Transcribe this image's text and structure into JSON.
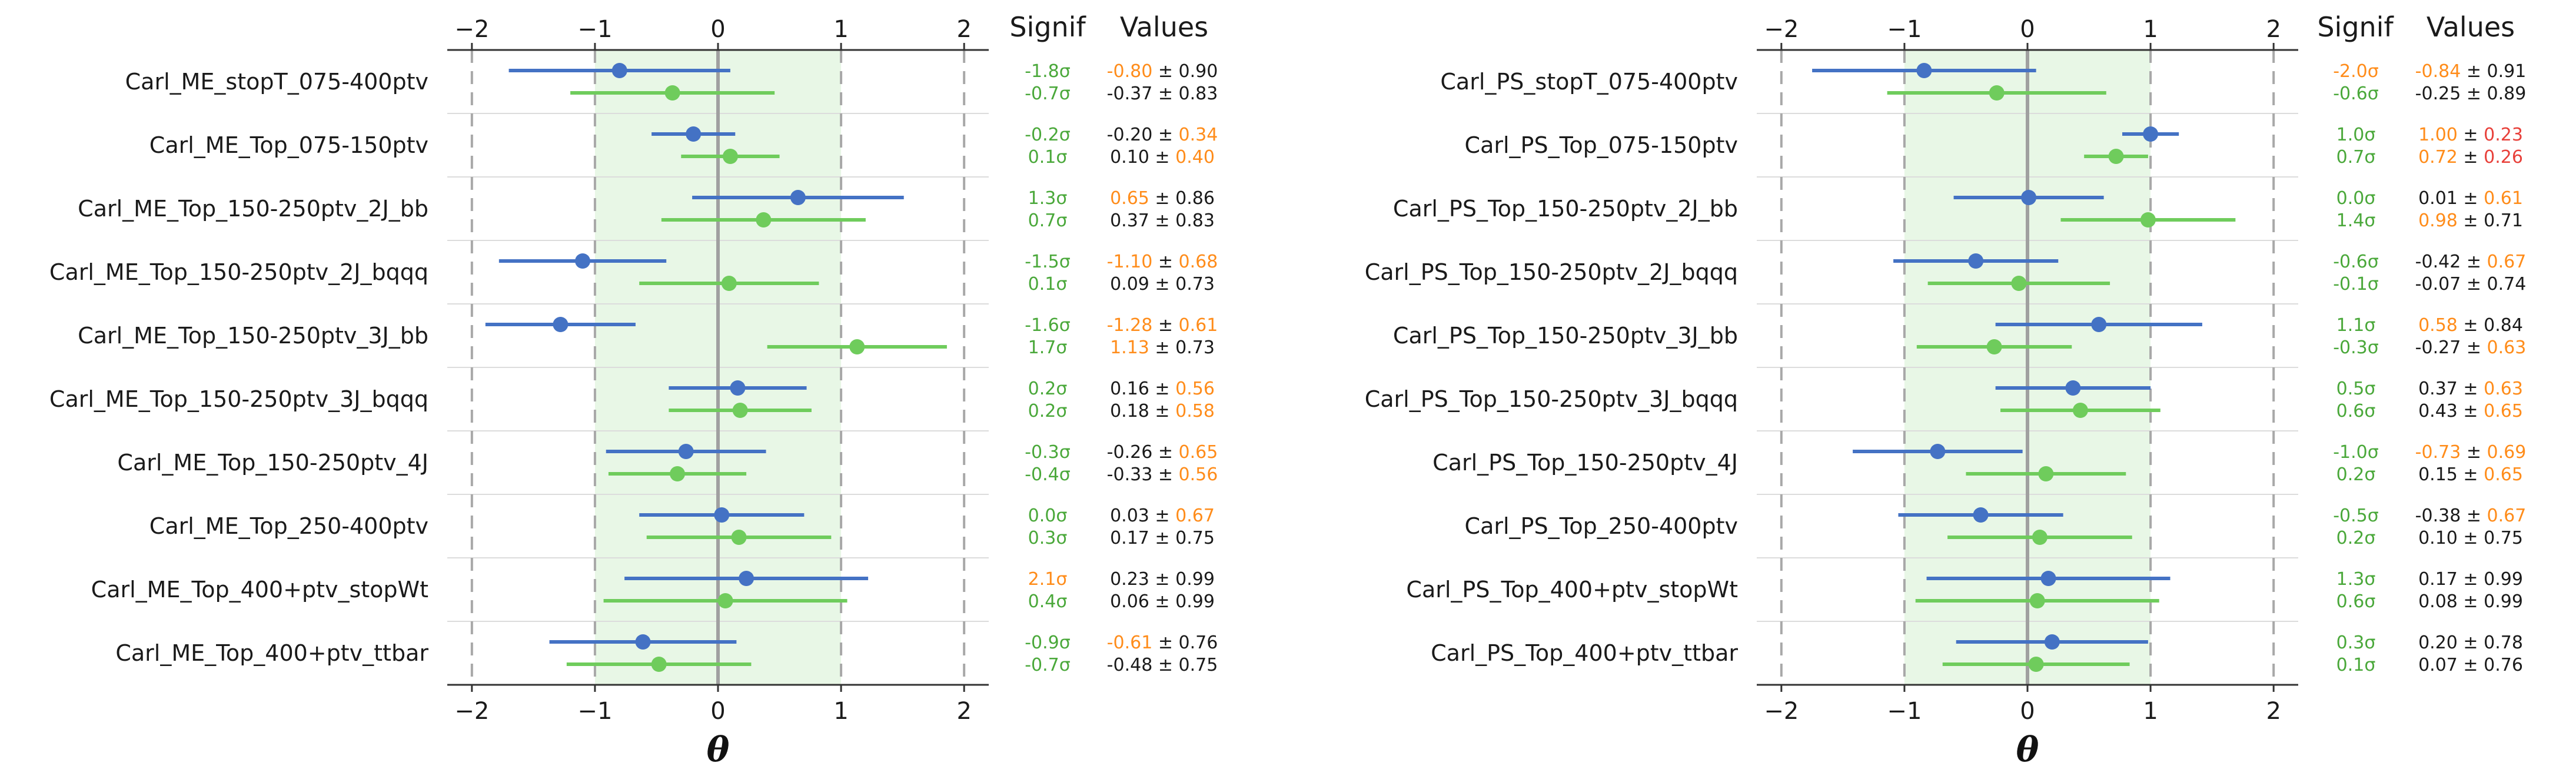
{
  "colors": {
    "blue": "#4472c4",
    "green": "#6fcc5c",
    "band": "#e8f7e6",
    "orange": "#ff8c1a",
    "red": "#e8403a",
    "neutral": "#1a1a1a",
    "sig_green": "#4aa83a"
  },
  "header": {
    "signif": "Signif",
    "values": "Values"
  },
  "axis": {
    "xlabel": "θ",
    "xlim": [
      -2.2,
      2.2
    ],
    "ticks": [
      -2,
      -1,
      0,
      1,
      2
    ],
    "tick_labels": [
      "−2",
      "−1",
      "0",
      "1",
      "2"
    ],
    "band": [
      -1,
      1
    ],
    "dashed_at": [
      -2,
      -1,
      1,
      2
    ]
  },
  "chart_data": [
    {
      "type": "scatter",
      "series": [
        {
          "color": "blue"
        },
        {
          "color": "green"
        }
      ],
      "categories": [
        "Carl_ME_stopT_075-400ptv",
        "Carl_ME_Top_075-150ptv",
        "Carl_ME_Top_150-250ptv_2J_bb",
        "Carl_ME_Top_150-250ptv_2J_bqqq",
        "Carl_ME_Top_150-250ptv_3J_bb",
        "Carl_ME_Top_150-250ptv_3J_bqqq",
        "Carl_ME_Top_150-250ptv_4J",
        "Carl_ME_Top_250-400ptv",
        "Carl_ME_Top_400+ptv_stopWt",
        "Carl_ME_Top_400+ptv_ttbar"
      ],
      "rows": [
        {
          "b": {
            "c": -0.8,
            "e": 0.9,
            "sig": "-1.8σ",
            "sc": "sig_green",
            "v": "-0.80",
            "vc": "orange",
            "err": "0.90",
            "ec": "neutral"
          },
          "g": {
            "c": -0.37,
            "e": 0.83,
            "sig": "-0.7σ",
            "sc": "sig_green",
            "v": "-0.37",
            "vc": "neutral",
            "err": "0.83",
            "ec": "neutral"
          }
        },
        {
          "b": {
            "c": -0.2,
            "e": 0.34,
            "sig": "-0.2σ",
            "sc": "sig_green",
            "v": "-0.20",
            "vc": "neutral",
            "err": "0.34",
            "ec": "orange"
          },
          "g": {
            "c": 0.1,
            "e": 0.4,
            "sig": "0.1σ",
            "sc": "sig_green",
            "v": "0.10",
            "vc": "neutral",
            "err": "0.40",
            "ec": "orange"
          }
        },
        {
          "b": {
            "c": 0.65,
            "e": 0.86,
            "sig": "1.3σ",
            "sc": "sig_green",
            "v": "0.65",
            "vc": "orange",
            "err": "0.86",
            "ec": "neutral"
          },
          "g": {
            "c": 0.37,
            "e": 0.83,
            "sig": "0.7σ",
            "sc": "sig_green",
            "v": "0.37",
            "vc": "neutral",
            "err": "0.83",
            "ec": "neutral"
          }
        },
        {
          "b": {
            "c": -1.1,
            "e": 0.68,
            "sig": "-1.5σ",
            "sc": "sig_green",
            "v": "-1.10",
            "vc": "orange",
            "err": "0.68",
            "ec": "orange"
          },
          "g": {
            "c": 0.09,
            "e": 0.73,
            "sig": "0.1σ",
            "sc": "sig_green",
            "v": "0.09",
            "vc": "neutral",
            "err": "0.73",
            "ec": "neutral"
          }
        },
        {
          "b": {
            "c": -1.28,
            "e": 0.61,
            "sig": "-1.6σ",
            "sc": "sig_green",
            "v": "-1.28",
            "vc": "orange",
            "err": "0.61",
            "ec": "orange"
          },
          "g": {
            "c": 1.13,
            "e": 0.73,
            "sig": "1.7σ",
            "sc": "sig_green",
            "v": "1.13",
            "vc": "orange",
            "err": "0.73",
            "ec": "neutral"
          }
        },
        {
          "b": {
            "c": 0.16,
            "e": 0.56,
            "sig": "0.2σ",
            "sc": "sig_green",
            "v": "0.16",
            "vc": "neutral",
            "err": "0.56",
            "ec": "orange"
          },
          "g": {
            "c": 0.18,
            "e": 0.58,
            "sig": "0.2σ",
            "sc": "sig_green",
            "v": "0.18",
            "vc": "neutral",
            "err": "0.58",
            "ec": "orange"
          }
        },
        {
          "b": {
            "c": -0.26,
            "e": 0.65,
            "sig": "-0.3σ",
            "sc": "sig_green",
            "v": "-0.26",
            "vc": "neutral",
            "err": "0.65",
            "ec": "orange"
          },
          "g": {
            "c": -0.33,
            "e": 0.56,
            "sig": "-0.4σ",
            "sc": "sig_green",
            "v": "-0.33",
            "vc": "neutral",
            "err": "0.56",
            "ec": "orange"
          }
        },
        {
          "b": {
            "c": 0.03,
            "e": 0.67,
            "sig": "0.0σ",
            "sc": "sig_green",
            "v": "0.03",
            "vc": "neutral",
            "err": "0.67",
            "ec": "orange"
          },
          "g": {
            "c": 0.17,
            "e": 0.75,
            "sig": "0.3σ",
            "sc": "sig_green",
            "v": "0.17",
            "vc": "neutral",
            "err": "0.75",
            "ec": "neutral"
          }
        },
        {
          "b": {
            "c": 0.23,
            "e": 0.99,
            "sig": "2.1σ",
            "sc": "orange",
            "v": "0.23",
            "vc": "neutral",
            "err": "0.99",
            "ec": "neutral"
          },
          "g": {
            "c": 0.06,
            "e": 0.99,
            "sig": "0.4σ",
            "sc": "sig_green",
            "v": "0.06",
            "vc": "neutral",
            "err": "0.99",
            "ec": "neutral"
          }
        },
        {
          "b": {
            "c": -0.61,
            "e": 0.76,
            "sig": "-0.9σ",
            "sc": "sig_green",
            "v": "-0.61",
            "vc": "orange",
            "err": "0.76",
            "ec": "neutral"
          },
          "g": {
            "c": -0.48,
            "e": 0.75,
            "sig": "-0.7σ",
            "sc": "sig_green",
            "v": "-0.48",
            "vc": "neutral",
            "err": "0.75",
            "ec": "neutral"
          }
        }
      ]
    },
    {
      "type": "scatter",
      "series": [
        {
          "color": "blue"
        },
        {
          "color": "green"
        }
      ],
      "categories": [
        "Carl_PS_stopT_075-400ptv",
        "Carl_PS_Top_075-150ptv",
        "Carl_PS_Top_150-250ptv_2J_bb",
        "Carl_PS_Top_150-250ptv_2J_bqqq",
        "Carl_PS_Top_150-250ptv_3J_bb",
        "Carl_PS_Top_150-250ptv_3J_bqqq",
        "Carl_PS_Top_150-250ptv_4J",
        "Carl_PS_Top_250-400ptv",
        "Carl_PS_Top_400+ptv_stopWt",
        "Carl_PS_Top_400+ptv_ttbar"
      ],
      "rows": [
        {
          "b": {
            "c": -0.84,
            "e": 0.91,
            "sig": "-2.0σ",
            "sc": "orange",
            "v": "-0.84",
            "vc": "orange",
            "err": "0.91",
            "ec": "neutral"
          },
          "g": {
            "c": -0.25,
            "e": 0.89,
            "sig": "-0.6σ",
            "sc": "sig_green",
            "v": "-0.25",
            "vc": "neutral",
            "err": "0.89",
            "ec": "neutral"
          }
        },
        {
          "b": {
            "c": 1.0,
            "e": 0.23,
            "sig": "1.0σ",
            "sc": "sig_green",
            "v": "1.00",
            "vc": "orange",
            "err": "0.23",
            "ec": "red"
          },
          "g": {
            "c": 0.72,
            "e": 0.26,
            "sig": "0.7σ",
            "sc": "sig_green",
            "v": "0.72",
            "vc": "orange",
            "err": "0.26",
            "ec": "red"
          }
        },
        {
          "b": {
            "c": 0.01,
            "e": 0.61,
            "sig": "0.0σ",
            "sc": "sig_green",
            "v": "0.01",
            "vc": "neutral",
            "err": "0.61",
            "ec": "orange"
          },
          "g": {
            "c": 0.98,
            "e": 0.71,
            "sig": "1.4σ",
            "sc": "sig_green",
            "v": "0.98",
            "vc": "orange",
            "err": "0.71",
            "ec": "neutral"
          }
        },
        {
          "b": {
            "c": -0.42,
            "e": 0.67,
            "sig": "-0.6σ",
            "sc": "sig_green",
            "v": "-0.42",
            "vc": "neutral",
            "err": "0.67",
            "ec": "orange"
          },
          "g": {
            "c": -0.07,
            "e": 0.74,
            "sig": "-0.1σ",
            "sc": "sig_green",
            "v": "-0.07",
            "vc": "neutral",
            "err": "0.74",
            "ec": "neutral"
          }
        },
        {
          "b": {
            "c": 0.58,
            "e": 0.84,
            "sig": "1.1σ",
            "sc": "sig_green",
            "v": "0.58",
            "vc": "orange",
            "err": "0.84",
            "ec": "neutral"
          },
          "g": {
            "c": -0.27,
            "e": 0.63,
            "sig": "-0.3σ",
            "sc": "sig_green",
            "v": "-0.27",
            "vc": "neutral",
            "err": "0.63",
            "ec": "orange"
          }
        },
        {
          "b": {
            "c": 0.37,
            "e": 0.63,
            "sig": "0.5σ",
            "sc": "sig_green",
            "v": "0.37",
            "vc": "neutral",
            "err": "0.63",
            "ec": "orange"
          },
          "g": {
            "c": 0.43,
            "e": 0.65,
            "sig": "0.6σ",
            "sc": "sig_green",
            "v": "0.43",
            "vc": "neutral",
            "err": "0.65",
            "ec": "orange"
          }
        },
        {
          "b": {
            "c": -0.73,
            "e": 0.69,
            "sig": "-1.0σ",
            "sc": "sig_green",
            "v": "-0.73",
            "vc": "orange",
            "err": "0.69",
            "ec": "orange"
          },
          "g": {
            "c": 0.15,
            "e": 0.65,
            "sig": "0.2σ",
            "sc": "sig_green",
            "v": "0.15",
            "vc": "neutral",
            "err": "0.65",
            "ec": "orange"
          }
        },
        {
          "b": {
            "c": -0.38,
            "e": 0.67,
            "sig": "-0.5σ",
            "sc": "sig_green",
            "v": "-0.38",
            "vc": "neutral",
            "err": "0.67",
            "ec": "orange"
          },
          "g": {
            "c": 0.1,
            "e": 0.75,
            "sig": "0.2σ",
            "sc": "sig_green",
            "v": "0.10",
            "vc": "neutral",
            "err": "0.75",
            "ec": "neutral"
          }
        },
        {
          "b": {
            "c": 0.17,
            "e": 0.99,
            "sig": "1.3σ",
            "sc": "sig_green",
            "v": "0.17",
            "vc": "neutral",
            "err": "0.99",
            "ec": "neutral"
          },
          "g": {
            "c": 0.08,
            "e": 0.99,
            "sig": "0.6σ",
            "sc": "sig_green",
            "v": "0.08",
            "vc": "neutral",
            "err": "0.99",
            "ec": "neutral"
          }
        },
        {
          "b": {
            "c": 0.2,
            "e": 0.78,
            "sig": "0.3σ",
            "sc": "sig_green",
            "v": "0.20",
            "vc": "neutral",
            "err": "0.78",
            "ec": "neutral"
          },
          "g": {
            "c": 0.07,
            "e": 0.76,
            "sig": "0.1σ",
            "sc": "sig_green",
            "v": "0.07",
            "vc": "neutral",
            "err": "0.76",
            "ec": "neutral"
          }
        }
      ]
    }
  ]
}
